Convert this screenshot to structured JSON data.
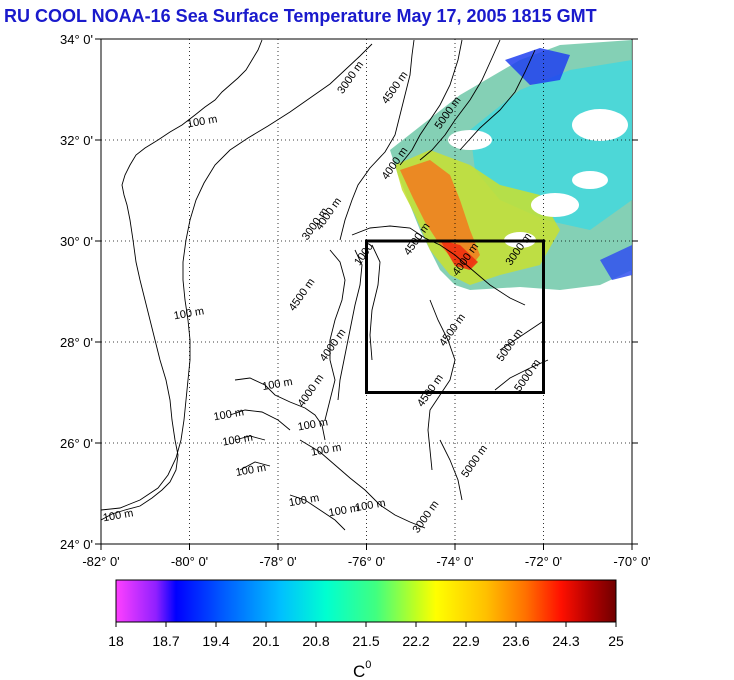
{
  "chart_data": {
    "type": "heatmap",
    "title": "RU COOL  NOAA-16 Sea Surface Temperature May 17, 2005 1815 GMT",
    "x_ticks": [
      "-82° 0'",
      "-80° 0'",
      "-78° 0'",
      "-76° 0'",
      "-74° 0'",
      "-72° 0'",
      "-70° 0'"
    ],
    "y_ticks": [
      "34° 0'",
      "32° 0'",
      "30° 0'",
      "28° 0'",
      "26° 0'",
      "24° 0'"
    ],
    "xlim": [
      -82,
      -70
    ],
    "ylim": [
      24,
      34
    ],
    "grid": true,
    "colorbar": {
      "ticks": [
        "18",
        "18.7",
        "19.4",
        "20.1",
        "20.8",
        "21.5",
        "22.2",
        "22.9",
        "23.6",
        "24.3",
        "25"
      ],
      "range": [
        18,
        25
      ],
      "label": "C",
      "label_superscript": "0",
      "colors": [
        "#ff40ff",
        "#9020ff",
        "#0000ff",
        "#0060ff",
        "#00c0ff",
        "#00ffd0",
        "#40ff80",
        "#c0ff20",
        "#ffff00",
        "#ffc000",
        "#ff7000",
        "#ff1000",
        "#b00000",
        "#700000"
      ]
    },
    "study_box": {
      "lon": [
        -76,
        -72
      ],
      "lat": [
        27,
        30
      ]
    },
    "contour_labels": [
      {
        "text": "3000 m",
        "lon": -76.3,
        "lat": 33.2
      },
      {
        "text": "4500 m",
        "lon": -75.3,
        "lat": 33.0
      },
      {
        "text": "5000 m",
        "lon": -74.1,
        "lat": 32.5
      },
      {
        "text": "100 m",
        "lon": -79.7,
        "lat": 32.3
      },
      {
        "text": "4000 m",
        "lon": -75.3,
        "lat": 31.5
      },
      {
        "text": "4000 m",
        "lon": -76.8,
        "lat": 30.5
      },
      {
        "text": "3000 m",
        "lon": -77.1,
        "lat": 30.3
      },
      {
        "text": "4500 m",
        "lon": -74.8,
        "lat": 30.0
      },
      {
        "text": "3000 m",
        "lon": -72.5,
        "lat": 29.8
      },
      {
        "text": "4000 m",
        "lon": -73.7,
        "lat": 29.6
      },
      {
        "text": "1000",
        "lon": -76.0,
        "lat": 29.7
      },
      {
        "text": "100 m",
        "lon": -80.0,
        "lat": 28.5
      },
      {
        "text": "4500 m",
        "lon": -77.4,
        "lat": 28.9
      },
      {
        "text": "4500 m",
        "lon": -74.0,
        "lat": 28.2
      },
      {
        "text": "4000 m",
        "lon": -76.7,
        "lat": 27.9
      },
      {
        "text": "5000 m",
        "lon": -72.7,
        "lat": 27.9
      },
      {
        "text": "5000 m",
        "lon": -72.3,
        "lat": 27.3
      },
      {
        "text": "4500 m",
        "lon": -74.5,
        "lat": 27.0
      },
      {
        "text": "100 m",
        "lon": -78.0,
        "lat": 27.1
      },
      {
        "text": "4000 m",
        "lon": -77.2,
        "lat": 27.0
      },
      {
        "text": "100 m",
        "lon": -79.1,
        "lat": 26.5
      },
      {
        "text": "100 m",
        "lon": -77.2,
        "lat": 26.3
      },
      {
        "text": "100 m",
        "lon": -78.9,
        "lat": 26.0
      },
      {
        "text": "100 m",
        "lon": -78.6,
        "lat": 25.4
      },
      {
        "text": "100 m",
        "lon": -76.9,
        "lat": 25.8
      },
      {
        "text": "100 m",
        "lon": -77.4,
        "lat": 24.8
      },
      {
        "text": "100 m",
        "lon": -76.5,
        "lat": 24.6
      },
      {
        "text": "100 m",
        "lon": -75.9,
        "lat": 24.7
      },
      {
        "text": "3000 m",
        "lon": -74.6,
        "lat": 24.5
      },
      {
        "text": "5000 m",
        "lon": -73.5,
        "lat": 25.6
      },
      {
        "text": "100 m",
        "lon": -81.6,
        "lat": 24.5
      }
    ]
  }
}
